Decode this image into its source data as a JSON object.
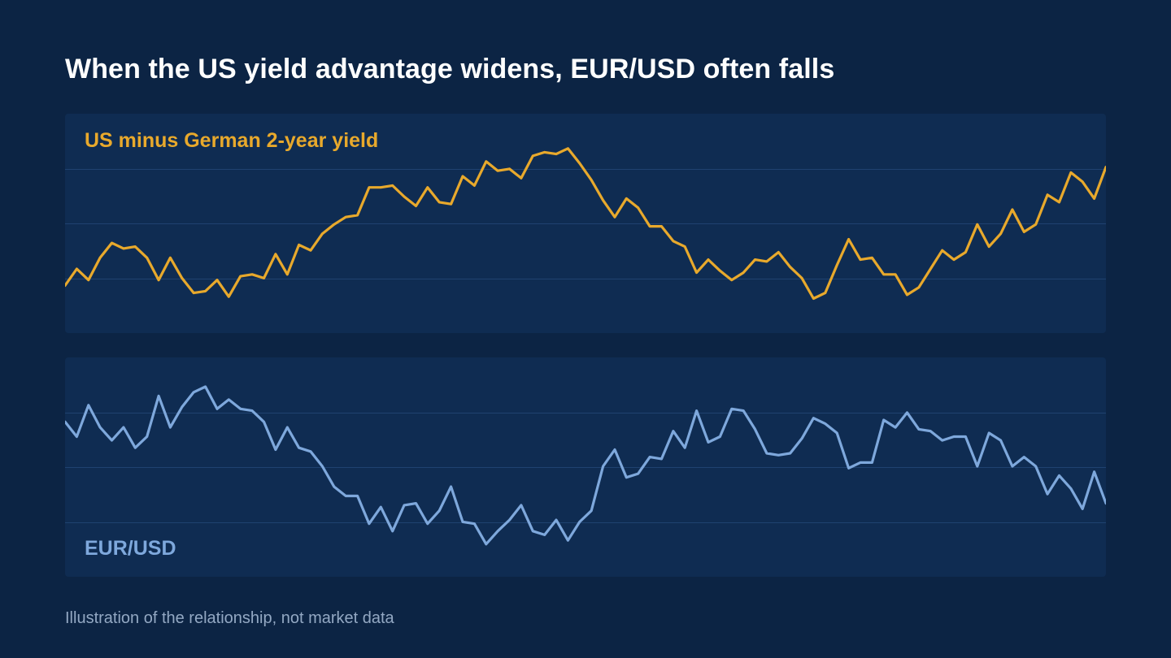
{
  "title": "When the US yield advantage widens, EUR/USD often falls",
  "footnote": "Illustration of the relationship, not market data",
  "colors": {
    "background": "#0c2444",
    "panel": "#0f2c52",
    "gridline": "#1f4270",
    "spread": "#e8a92c",
    "eurusd": "#7ea8dc"
  },
  "chart_data": [
    {
      "type": "line",
      "ylim": [
        0,
        100
      ],
      "grid": true,
      "gridlines": [
        25,
        50,
        75
      ],
      "series": [
        {
          "name": "US minus German 2-year yield",
          "values": [
            16,
            25,
            19,
            31,
            39,
            36,
            37,
            31,
            19,
            31,
            20,
            12,
            13,
            19,
            10,
            21,
            22,
            20,
            33,
            22,
            38,
            35,
            44,
            49,
            53,
            54,
            69,
            69,
            70,
            64,
            59,
            69,
            61,
            60,
            75,
            70,
            83,
            78,
            79,
            74,
            86,
            88,
            87,
            90,
            82,
            73,
            62,
            53,
            63,
            58,
            48,
            48,
            40,
            37,
            23,
            30,
            24,
            19,
            23,
            30,
            29,
            34,
            26,
            20,
            9,
            12,
            27,
            41,
            30,
            31,
            22,
            22,
            11,
            15,
            25,
            35,
            30,
            34,
            49,
            37,
            44,
            57,
            45,
            49,
            65,
            61,
            77,
            72,
            63,
            80
          ]
        }
      ]
    },
    {
      "type": "line",
      "ylim": [
        0,
        100
      ],
      "grid": true,
      "gridlines": [
        25,
        50,
        75
      ],
      "series": [
        {
          "name": "EUR/USD",
          "values": [
            74,
            66,
            83,
            71,
            64,
            71,
            60,
            66,
            88,
            71,
            82,
            90,
            93,
            81,
            86,
            81,
            80,
            74,
            59,
            71,
            60,
            58,
            50,
            39,
            34,
            34,
            19,
            28,
            15,
            29,
            30,
            19,
            26,
            39,
            20,
            19,
            8,
            15,
            21,
            29,
            15,
            13,
            21,
            10,
            20,
            26,
            50,
            59,
            44,
            46,
            55,
            54,
            69,
            60,
            80,
            63,
            66,
            81,
            80,
            70,
            57,
            56,
            57,
            65,
            76,
            73,
            68,
            49,
            52,
            52,
            75,
            71,
            79,
            70,
            69,
            64,
            66,
            66,
            50,
            68,
            64,
            50,
            55,
            50,
            35,
            45,
            38,
            27,
            47,
            30
          ]
        }
      ]
    }
  ]
}
